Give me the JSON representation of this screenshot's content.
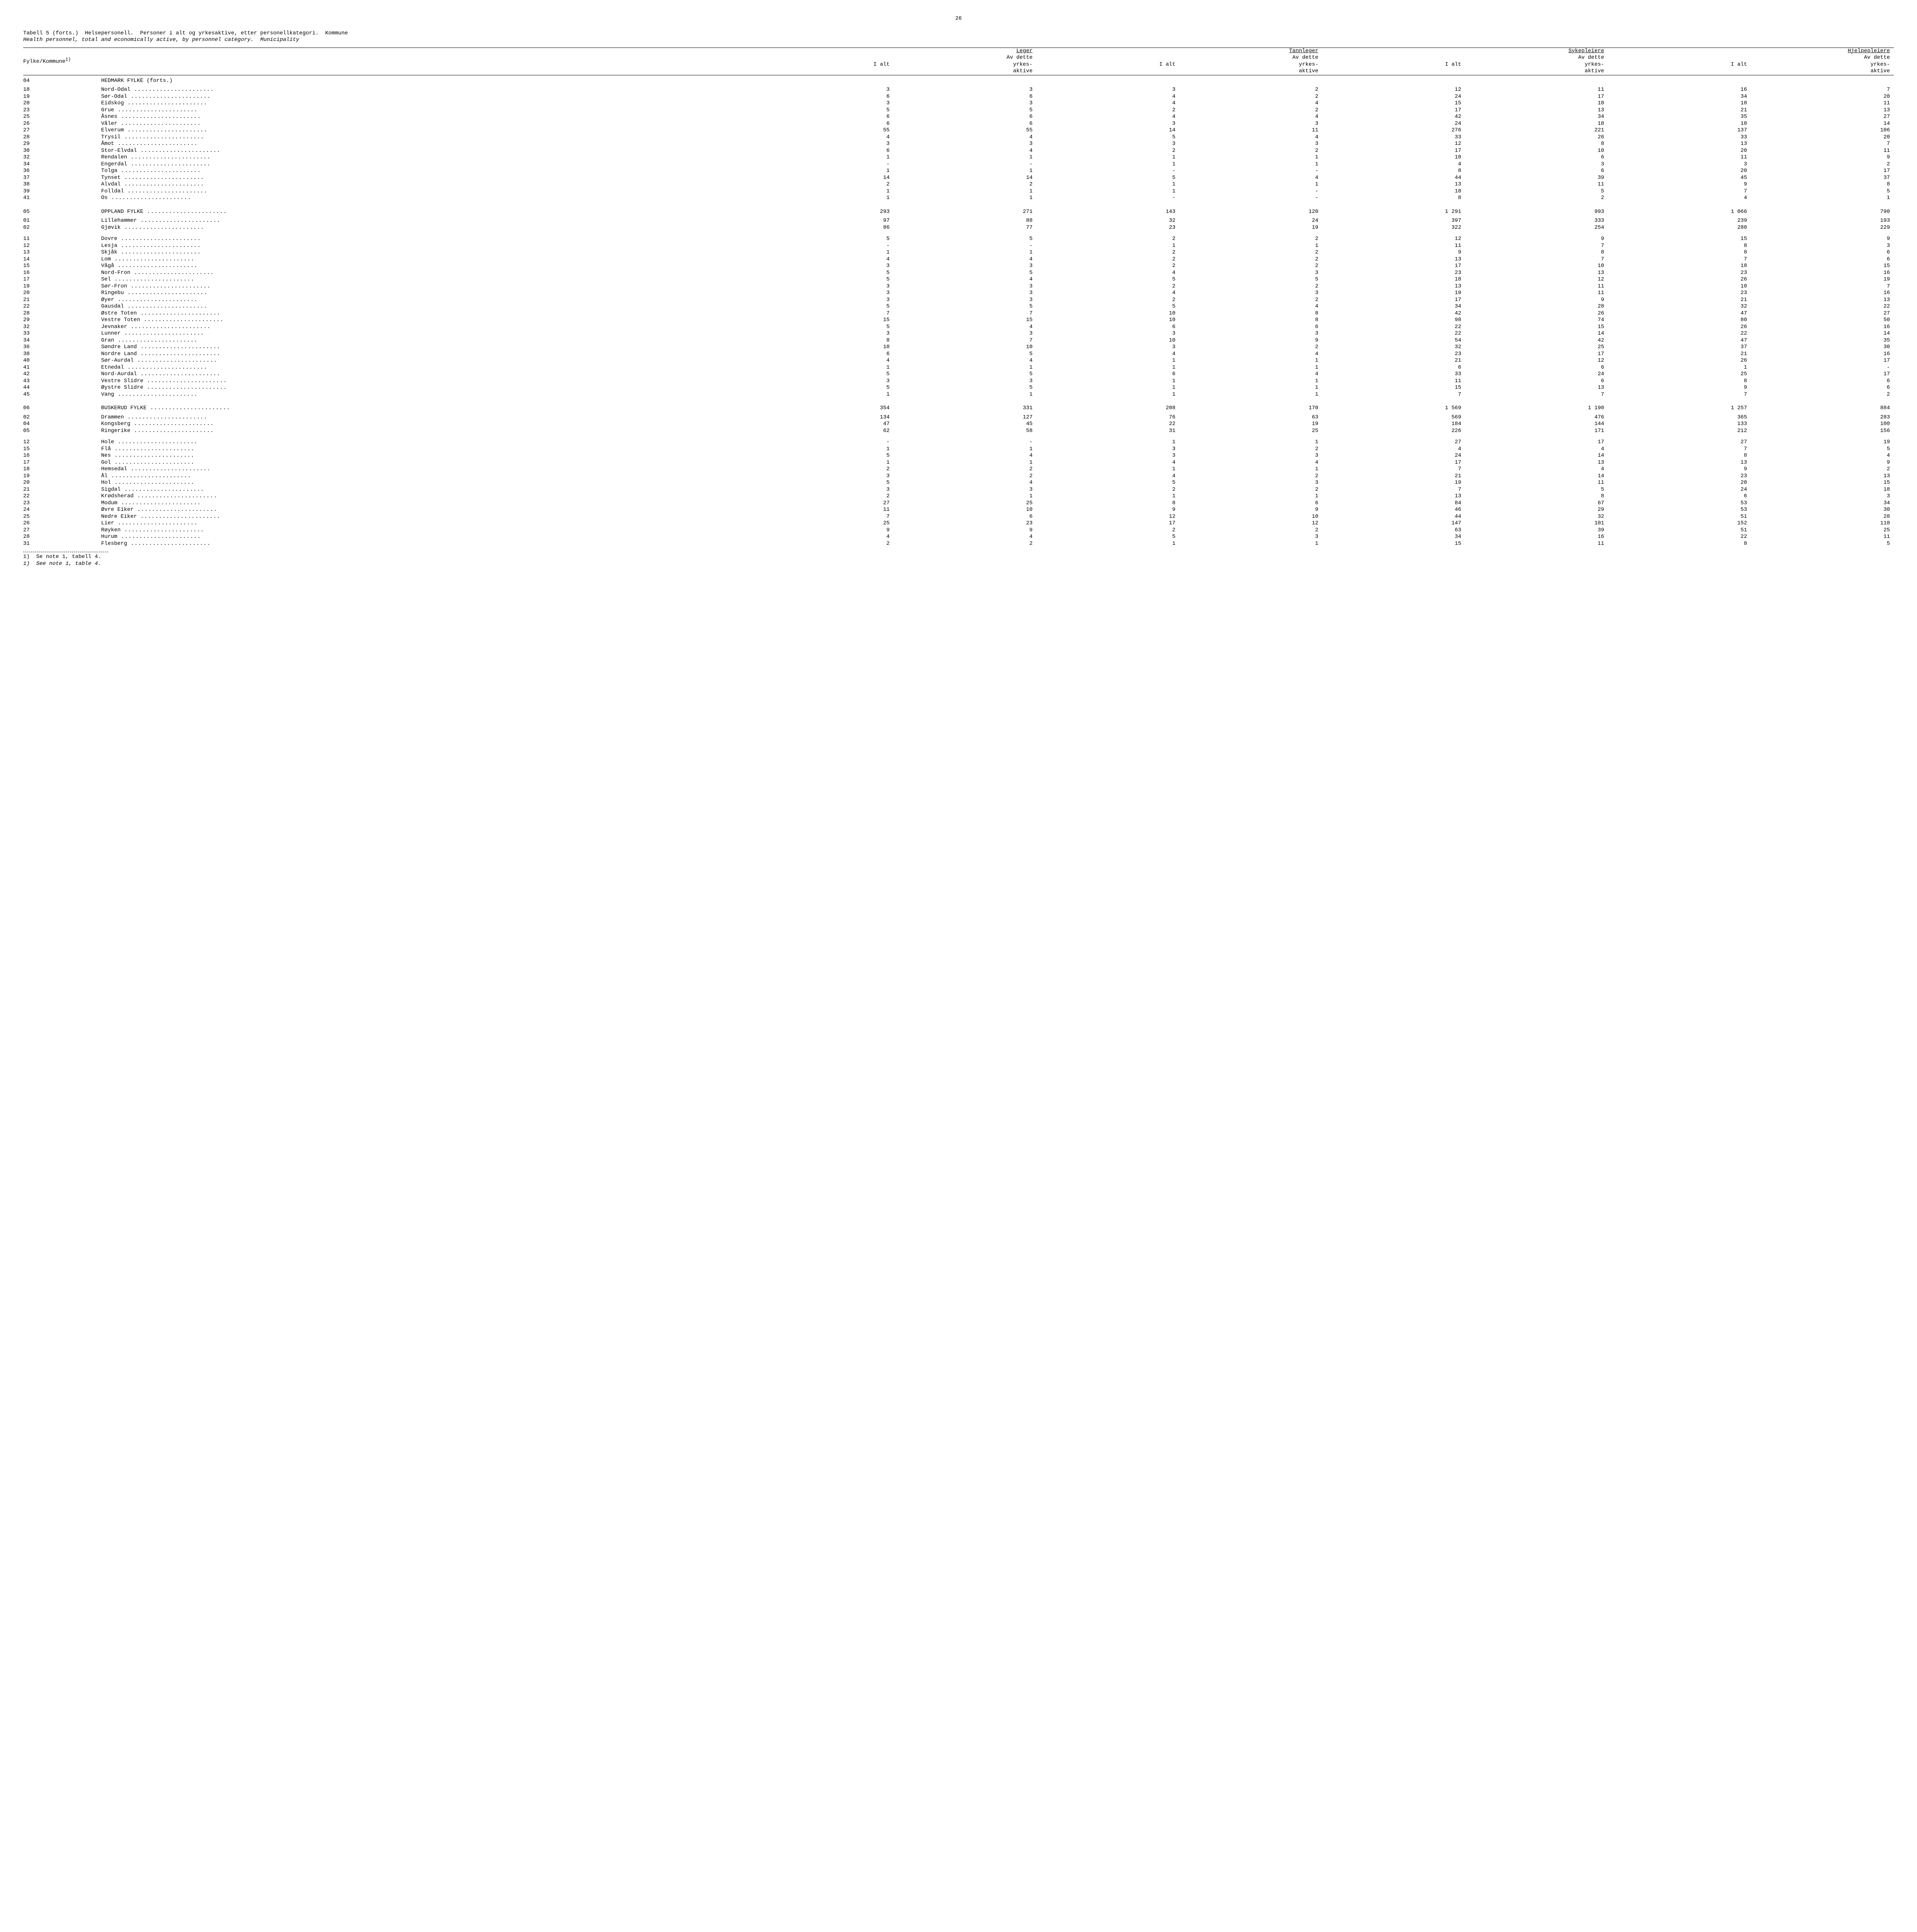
{
  "page_number": "26",
  "table_title_no": "Tabell 5 (forts.)  Helsepersonell.  Personer i alt og yrkesaktive, etter personellkategori.  Kommune",
  "table_title_en": "Health personnel, total and economically active, by personnel category.  Municipality",
  "row_header_label": "Fylke/Kommune",
  "row_header_sup": "1)",
  "col_groups": [
    "Leger",
    "Tannleger",
    "Sykepleiere",
    "Hjelpepleiere"
  ],
  "sub_ialt": "I alt",
  "sub_avdette": "Av dette",
  "sub_yrkes": "yrkes-",
  "sub_aktive": "aktive",
  "rows": [
    {
      "code": "04",
      "name": "HEDMARK FYLKE (forts.)",
      "fylke": true,
      "vals": [
        "",
        "",
        "",
        "",
        "",
        "",
        "",
        ""
      ]
    },
    {
      "code": "18",
      "name": "Nord-Odal",
      "dots": true,
      "vals": [
        "3",
        "3",
        "3",
        "2",
        "12",
        "11",
        "16",
        "7"
      ]
    },
    {
      "code": "19",
      "name": "Sør-Odal",
      "dots": true,
      "vals": [
        "6",
        "6",
        "4",
        "2",
        "24",
        "17",
        "34",
        "20"
      ]
    },
    {
      "code": "20",
      "name": "Eidskog",
      "dots": true,
      "vals": [
        "3",
        "3",
        "4",
        "4",
        "15",
        "10",
        "18",
        "11"
      ]
    },
    {
      "code": "23",
      "name": "Grue",
      "dots": true,
      "vals": [
        "5",
        "5",
        "2",
        "2",
        "17",
        "13",
        "21",
        "13"
      ]
    },
    {
      "code": "25",
      "name": "Åsnes",
      "dots": true,
      "vals": [
        "6",
        "6",
        "4",
        "4",
        "42",
        "34",
        "35",
        "27"
      ]
    },
    {
      "code": "26",
      "name": "Våler",
      "dots": true,
      "vals": [
        "6",
        "6",
        "3",
        "3",
        "24",
        "18",
        "18",
        "14"
      ]
    },
    {
      "code": "27",
      "name": "Elverum",
      "dots": true,
      "vals": [
        "55",
        "55",
        "14",
        "11",
        "276",
        "221",
        "137",
        "106"
      ]
    },
    {
      "code": "28",
      "name": "Trysil",
      "dots": true,
      "vals": [
        "4",
        "4",
        "5",
        "4",
        "33",
        "26",
        "33",
        "20"
      ]
    },
    {
      "code": "29",
      "name": "Åmot",
      "dots": true,
      "vals": [
        "3",
        "3",
        "3",
        "3",
        "12",
        "8",
        "13",
        "7"
      ]
    },
    {
      "code": "30",
      "name": "Stor-Elvdal",
      "dots": true,
      "vals": [
        "6",
        "4",
        "2",
        "2",
        "17",
        "10",
        "20",
        "11"
      ]
    },
    {
      "code": "32",
      "name": "Rendalen",
      "dots": true,
      "vals": [
        "1",
        "1",
        "1",
        "1",
        "10",
        "6",
        "11",
        "9"
      ]
    },
    {
      "code": "34",
      "name": "Engerdal",
      "dots": true,
      "vals": [
        "-",
        "-",
        "1",
        "1",
        "4",
        "3",
        "3",
        "2"
      ]
    },
    {
      "code": "36",
      "name": "Tolga",
      "dots": true,
      "vals": [
        "1",
        "1",
        "-",
        "-",
        "8",
        "6",
        "20",
        "17"
      ]
    },
    {
      "code": "37",
      "name": "Tynset",
      "dots": true,
      "vals": [
        "14",
        "14",
        "5",
        "4",
        "44",
        "39",
        "45",
        "37"
      ]
    },
    {
      "code": "38",
      "name": "Alvdal",
      "dots": true,
      "vals": [
        "2",
        "2",
        "1",
        "1",
        "13",
        "11",
        "9",
        "8"
      ]
    },
    {
      "code": "39",
      "name": "Folldal",
      "dots": true,
      "vals": [
        "1",
        "1",
        "1",
        "-",
        "10",
        "5",
        "7",
        "5"
      ]
    },
    {
      "code": "41",
      "name": "Os",
      "dots": true,
      "vals": [
        "1",
        "1",
        "-",
        "-",
        "8",
        "2",
        "4",
        "1"
      ]
    },
    {
      "spacer": true
    },
    {
      "code": "05",
      "name": "OPPLAND FYLKE",
      "dots": true,
      "fylke": true,
      "vals": [
        "293",
        "271",
        "143",
        "120",
        "1 291",
        "993",
        "1 066",
        "790"
      ]
    },
    {
      "code": "01",
      "name": "Lillehammer",
      "dots": true,
      "vals": [
        "97",
        "88",
        "32",
        "24",
        "397",
        "333",
        "239",
        "193"
      ]
    },
    {
      "code": "02",
      "name": "Gjøvik",
      "dots": true,
      "vals": [
        "86",
        "77",
        "23",
        "19",
        "322",
        "254",
        "280",
        "229"
      ]
    },
    {
      "spacer": true
    },
    {
      "code": "11",
      "name": "Dovre",
      "dots": true,
      "vals": [
        "5",
        "5",
        "2",
        "2",
        "12",
        "9",
        "15",
        "9"
      ]
    },
    {
      "code": "12",
      "name": "Lesja",
      "dots": true,
      "vals": [
        "-",
        "-",
        "1",
        "1",
        "11",
        "7",
        "8",
        "3"
      ]
    },
    {
      "code": "13",
      "name": "Skjåk",
      "dots": true,
      "vals": [
        "1",
        "1",
        "2",
        "2",
        "9",
        "8",
        "8",
        "6"
      ]
    },
    {
      "code": "14",
      "name": "Lom",
      "dots": true,
      "vals": [
        "4",
        "4",
        "2",
        "2",
        "13",
        "7",
        "7",
        "6"
      ]
    },
    {
      "code": "15",
      "name": "Vågå",
      "dots": true,
      "vals": [
        "3",
        "3",
        "2",
        "2",
        "17",
        "10",
        "18",
        "15"
      ]
    },
    {
      "code": "16",
      "name": "Nord-Fron",
      "dots": true,
      "vals": [
        "5",
        "5",
        "4",
        "3",
        "23",
        "13",
        "23",
        "16"
      ]
    },
    {
      "code": "17",
      "name": "Sel",
      "dots": true,
      "vals": [
        "5",
        "4",
        "5",
        "5",
        "18",
        "12",
        "26",
        "19"
      ]
    },
    {
      "code": "19",
      "name": "Sør-Fron",
      "dots": true,
      "vals": [
        "3",
        "3",
        "2",
        "2",
        "13",
        "11",
        "10",
        "7"
      ]
    },
    {
      "code": "20",
      "name": "Ringebu",
      "dots": true,
      "vals": [
        "3",
        "3",
        "4",
        "3",
        "19",
        "11",
        "23",
        "16"
      ]
    },
    {
      "code": "21",
      "name": "Øyer",
      "dots": true,
      "vals": [
        "3",
        "3",
        "2",
        "2",
        "17",
        "9",
        "21",
        "13"
      ]
    },
    {
      "code": "22",
      "name": "Gausdal",
      "dots": true,
      "vals": [
        "5",
        "5",
        "5",
        "4",
        "34",
        "28",
        "32",
        "22"
      ]
    },
    {
      "code": "28",
      "name": "Østre Toten",
      "dots": true,
      "vals": [
        "7",
        "7",
        "10",
        "8",
        "42",
        "26",
        "47",
        "27"
      ]
    },
    {
      "code": "29",
      "name": "Vestre Toten",
      "dots": true,
      "vals": [
        "15",
        "15",
        "10",
        "8",
        "98",
        "74",
        "80",
        "50"
      ]
    },
    {
      "code": "32",
      "name": "Jevnaker",
      "dots": true,
      "vals": [
        "5",
        "4",
        "6",
        "6",
        "22",
        "15",
        "26",
        "16"
      ]
    },
    {
      "code": "33",
      "name": "Lunner",
      "dots": true,
      "vals": [
        "3",
        "3",
        "3",
        "3",
        "22",
        "14",
        "22",
        "14"
      ]
    },
    {
      "code": "34",
      "name": "Gran",
      "dots": true,
      "vals": [
        "8",
        "7",
        "10",
        "9",
        "54",
        "42",
        "47",
        "35"
      ]
    },
    {
      "code": "36",
      "name": "Søndre Land",
      "dots": true,
      "vals": [
        "10",
        "10",
        "3",
        "2",
        "32",
        "25",
        "37",
        "30"
      ]
    },
    {
      "code": "38",
      "name": "Nordre Land",
      "dots": true,
      "vals": [
        "6",
        "5",
        "4",
        "4",
        "23",
        "17",
        "21",
        "16"
      ]
    },
    {
      "code": "40",
      "name": "Sør-Aurdal",
      "dots": true,
      "vals": [
        "4",
        "4",
        "1",
        "1",
        "21",
        "12",
        "26",
        "17"
      ]
    },
    {
      "code": "41",
      "name": "Etnedal",
      "dots": true,
      "vals": [
        "1",
        "1",
        "1",
        "1",
        "6",
        "6",
        "1",
        "-"
      ]
    },
    {
      "code": "42",
      "name": "Nord-Aurdal",
      "dots": true,
      "vals": [
        "5",
        "5",
        "6",
        "4",
        "33",
        "24",
        "25",
        "17"
      ]
    },
    {
      "code": "43",
      "name": "Vestre Slidre",
      "dots": true,
      "vals": [
        "3",
        "3",
        "1",
        "1",
        "11",
        "6",
        "8",
        "6"
      ]
    },
    {
      "code": "44",
      "name": "Øystre Slidre",
      "dots": true,
      "vals": [
        "5",
        "5",
        "1",
        "1",
        "15",
        "13",
        "9",
        "6"
      ]
    },
    {
      "code": "45",
      "name": "Vang",
      "dots": true,
      "vals": [
        "1",
        "1",
        "1",
        "1",
        "7",
        "7",
        "7",
        "2"
      ]
    },
    {
      "spacer": true
    },
    {
      "code": "06",
      "name": "BUSKERUD FYLKE",
      "dots": true,
      "fylke": true,
      "vals": [
        "354",
        "331",
        "208",
        "170",
        "1 569",
        "1 190",
        "1 257",
        "884"
      ]
    },
    {
      "code": "02",
      "name": "Drammen",
      "dots": true,
      "vals": [
        "134",
        "127",
        "76",
        "63",
        "569",
        "476",
        "365",
        "283"
      ]
    },
    {
      "code": "04",
      "name": "Kongsberg",
      "dots": true,
      "vals": [
        "47",
        "45",
        "22",
        "19",
        "184",
        "144",
        "133",
        "100"
      ]
    },
    {
      "code": "05",
      "name": "Ringerike",
      "dots": true,
      "vals": [
        "62",
        "58",
        "31",
        "25",
        "226",
        "171",
        "212",
        "156"
      ]
    },
    {
      "spacer": true
    },
    {
      "code": "12",
      "name": "Hole",
      "dots": true,
      "vals": [
        "-",
        "-",
        "1",
        "1",
        "27",
        "17",
        "27",
        "19"
      ]
    },
    {
      "code": "15",
      "name": "Flå",
      "dots": true,
      "vals": [
        "1",
        "1",
        "3",
        "2",
        "4",
        "4",
        "7",
        "5"
      ]
    },
    {
      "code": "16",
      "name": "Nes",
      "dots": true,
      "vals": [
        "5",
        "4",
        "3",
        "3",
        "24",
        "14",
        "8",
        "4"
      ]
    },
    {
      "code": "17",
      "name": "Gol",
      "dots": true,
      "vals": [
        "1",
        "1",
        "4",
        "4",
        "17",
        "13",
        "13",
        "9"
      ]
    },
    {
      "code": "18",
      "name": "Hemsedal",
      "dots": true,
      "vals": [
        "2",
        "2",
        "1",
        "1",
        "7",
        "4",
        "9",
        "2"
      ]
    },
    {
      "code": "19",
      "name": "Ål",
      "dots": true,
      "vals": [
        "3",
        "2",
        "4",
        "2",
        "21",
        "14",
        "23",
        "13"
      ]
    },
    {
      "code": "20",
      "name": "Hol",
      "dots": true,
      "vals": [
        "5",
        "4",
        "5",
        "3",
        "19",
        "11",
        "20",
        "15"
      ]
    },
    {
      "code": "21",
      "name": "Sigdal",
      "dots": true,
      "vals": [
        "3",
        "3",
        "2",
        "2",
        "7",
        "5",
        "24",
        "18"
      ]
    },
    {
      "code": "22",
      "name": "Krødsherad",
      "dots": true,
      "vals": [
        "2",
        "1",
        "1",
        "1",
        "13",
        "8",
        "6",
        "3"
      ]
    },
    {
      "code": "23",
      "name": "Modum",
      "dots": true,
      "vals": [
        "27",
        "25",
        "8",
        "6",
        "84",
        "67",
        "53",
        "34"
      ]
    },
    {
      "code": "24",
      "name": "Øvre Eiker",
      "dots": true,
      "vals": [
        "11",
        "10",
        "9",
        "9",
        "46",
        "29",
        "53",
        "30"
      ]
    },
    {
      "code": "25",
      "name": "Nedre Eiker",
      "dots": true,
      "vals": [
        "7",
        "6",
        "12",
        "10",
        "44",
        "32",
        "51",
        "28"
      ]
    },
    {
      "code": "26",
      "name": "Lier",
      "dots": true,
      "vals": [
        "25",
        "23",
        "17",
        "12",
        "147",
        "101",
        "152",
        "110"
      ]
    },
    {
      "code": "27",
      "name": "Røyken",
      "dots": true,
      "vals": [
        "9",
        "9",
        "2",
        "2",
        "63",
        "39",
        "51",
        "25"
      ]
    },
    {
      "code": "28",
      "name": "Hurum",
      "dots": true,
      "vals": [
        "4",
        "4",
        "5",
        "3",
        "34",
        "16",
        "22",
        "11"
      ]
    },
    {
      "code": "31",
      "name": "Flesberg",
      "dots": true,
      "vals": [
        "2",
        "2",
        "1",
        "1",
        "15",
        "11",
        "8",
        "5"
      ]
    }
  ],
  "footnote_no": "1)  Se note 1, tabell 4.",
  "footnote_en": "1)  See note 1, table 4."
}
